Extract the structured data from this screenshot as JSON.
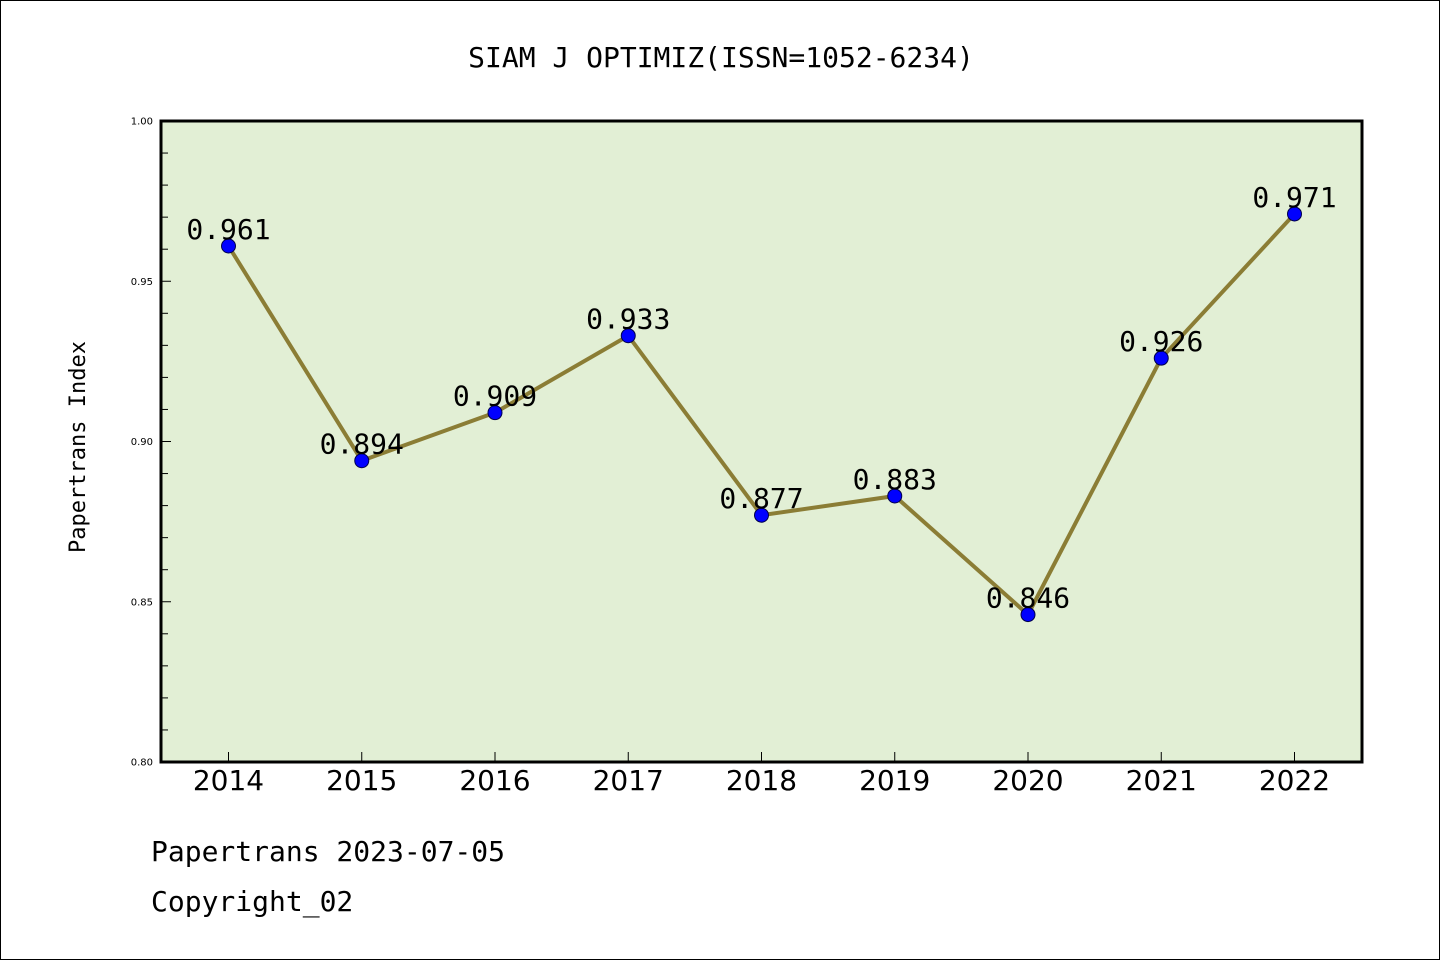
{
  "chart_data": {
    "type": "line",
    "title": "SIAM J OPTIMIZ(ISSN=1052-6234)",
    "xlabel": "",
    "ylabel": "Papertrans Index",
    "categories": [
      "2014",
      "2015",
      "2016",
      "2017",
      "2018",
      "2019",
      "2020",
      "2021",
      "2022"
    ],
    "series": [
      {
        "values": [
          0.961,
          0.894,
          0.909,
          0.933,
          0.877,
          0.883,
          0.846,
          0.926,
          0.971
        ]
      }
    ],
    "data_labels": [
      "0.961",
      "0.894",
      "0.909",
      "0.933",
      "0.877",
      "0.883",
      "0.846",
      "0.926",
      "0.971"
    ],
    "ylim": [
      0.8,
      1.0
    ],
    "yticks": [
      "0.80",
      "0.85",
      "0.90",
      "0.95",
      "1.00"
    ],
    "grid": false,
    "colors": {
      "plot_background": "#e2efd5",
      "line": "#8b7d35",
      "marker": "#0000ff"
    }
  },
  "footer": {
    "line1": "Papertrans 2023-07-05",
    "line2": "Copyright_02"
  }
}
